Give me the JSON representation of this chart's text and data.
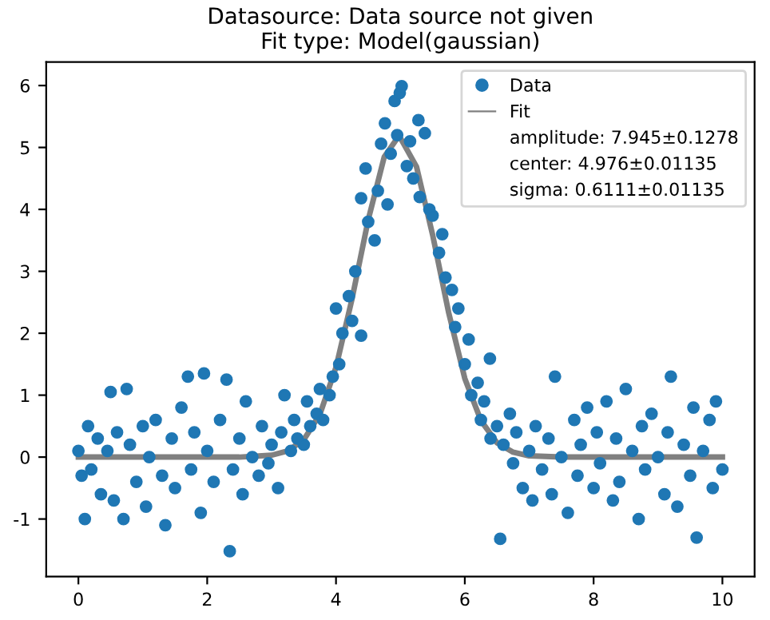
{
  "chart_data": {
    "type": "scatter",
    "title": "Datasource: Data source not given\nFit type: Model(gaussian)",
    "xlim": [
      -0.5,
      10.5
    ],
    "ylim": [
      -1.93,
      6.38
    ],
    "xticks": [
      0,
      2,
      4,
      6,
      8,
      10
    ],
    "yticks": [
      -1,
      0,
      1,
      2,
      3,
      4,
      5,
      6
    ],
    "grid": false,
    "legend": "top right",
    "annotations": [
      "amplitude: 7.945±0.1278",
      "center: 4.976±0.01135",
      "sigma: 0.6111±0.01135"
    ],
    "series": [
      {
        "name": "Data",
        "marker": "circle",
        "color": "#1f77b4",
        "x": [
          0.0,
          0.05,
          0.1,
          0.15,
          0.2,
          0.3,
          0.35,
          0.45,
          0.5,
          0.55,
          0.6,
          0.7,
          0.75,
          0.8,
          0.9,
          1.0,
          1.05,
          1.1,
          1.2,
          1.3,
          1.35,
          1.45,
          1.5,
          1.6,
          1.7,
          1.75,
          1.8,
          1.9,
          1.95,
          2.0,
          2.1,
          2.2,
          2.3,
          2.35,
          2.4,
          2.5,
          2.55,
          2.6,
          2.7,
          2.8,
          2.85,
          2.95,
          3.0,
          3.1,
          3.15,
          3.2,
          3.3,
          3.35,
          3.4,
          3.5,
          3.55,
          3.6,
          3.7,
          3.75,
          3.8,
          3.9,
          3.95,
          4.0,
          4.05,
          4.1,
          4.2,
          4.25,
          4.3,
          4.39,
          4.39,
          4.46,
          4.5,
          4.6,
          4.65,
          4.7,
          4.76,
          4.8,
          4.85,
          4.91,
          4.95,
          4.99,
          5.02,
          5.1,
          5.15,
          5.2,
          5.28,
          5.3,
          5.38,
          5.45,
          5.5,
          5.6,
          5.65,
          5.7,
          5.8,
          5.85,
          5.9,
          6.0,
          6.06,
          6.1,
          6.2,
          6.25,
          6.3,
          6.39,
          6.4,
          6.5,
          6.55,
          6.6,
          6.7,
          6.75,
          6.8,
          6.9,
          7.0,
          7.05,
          7.1,
          7.2,
          7.3,
          7.35,
          7.4,
          7.5,
          7.6,
          7.7,
          7.75,
          7.8,
          7.9,
          8.0,
          8.05,
          8.1,
          8.2,
          8.3,
          8.35,
          8.4,
          8.5,
          8.6,
          8.7,
          8.75,
          8.8,
          8.9,
          9.0,
          9.1,
          9.15,
          9.2,
          9.3,
          9.4,
          9.5,
          9.55,
          9.6,
          9.7,
          9.8,
          9.85,
          9.9,
          10.0
        ],
        "values": [
          0.1,
          -0.3,
          -1.0,
          0.5,
          -0.2,
          0.3,
          -0.6,
          0.1,
          1.05,
          -0.7,
          0.4,
          -1.0,
          1.1,
          0.2,
          -0.4,
          0.5,
          -0.8,
          0.0,
          0.6,
          -0.3,
          -1.1,
          0.3,
          -0.5,
          0.8,
          1.3,
          -0.2,
          0.4,
          -0.9,
          1.35,
          0.1,
          -0.4,
          0.6,
          1.25,
          -1.52,
          -0.2,
          0.3,
          -0.6,
          0.9,
          0.0,
          -0.3,
          0.5,
          -0.1,
          0.2,
          -0.5,
          0.4,
          1.0,
          0.1,
          0.6,
          0.3,
          0.2,
          0.9,
          0.5,
          0.7,
          1.1,
          0.6,
          1.0,
          1.3,
          2.4,
          1.5,
          2.0,
          2.6,
          2.2,
          3.0,
          4.18,
          1.96,
          4.66,
          3.8,
          3.5,
          4.3,
          5.06,
          5.39,
          4.08,
          4.9,
          5.75,
          5.2,
          5.88,
          5.99,
          4.7,
          5.1,
          4.5,
          5.44,
          4.2,
          5.23,
          4.0,
          3.9,
          3.3,
          3.6,
          2.9,
          2.7,
          2.1,
          2.4,
          1.5,
          1.9,
          1.0,
          1.2,
          0.6,
          0.9,
          1.59,
          0.3,
          0.5,
          -1.32,
          0.2,
          0.7,
          -0.1,
          0.4,
          -0.5,
          0.1,
          -0.7,
          0.5,
          -0.2,
          0.3,
          -0.6,
          1.3,
          0.0,
          -0.9,
          0.6,
          -0.3,
          0.2,
          0.8,
          -0.5,
          0.4,
          -0.1,
          0.9,
          -0.7,
          0.3,
          -0.4,
          1.1,
          0.1,
          -1.0,
          0.5,
          -0.2,
          0.7,
          0.0,
          -0.6,
          0.4,
          1.3,
          -0.8,
          0.2,
          -0.3,
          0.8,
          -1.3,
          0.1,
          0.6,
          -0.5,
          0.9,
          -0.2
        ]
      },
      {
        "name": "Fit",
        "type": "line",
        "marker": "none",
        "line_style": "solid",
        "color": "#808080",
        "x": [
          0,
          1,
          2,
          2.5,
          3.0,
          3.25,
          3.5,
          3.75,
          4.0,
          4.25,
          4.5,
          4.75,
          4.98,
          5.25,
          5.5,
          5.75,
          6.0,
          6.25,
          6.5,
          6.75,
          7.0,
          7.5,
          8,
          9,
          10
        ],
        "values": [
          0,
          0,
          0,
          0,
          0.03,
          0.1,
          0.28,
          0.69,
          1.45,
          2.56,
          3.83,
          4.85,
          5.19,
          4.69,
          3.59,
          2.33,
          1.27,
          0.59,
          0.23,
          0.08,
          0.02,
          0,
          0,
          0,
          0
        ]
      }
    ]
  }
}
